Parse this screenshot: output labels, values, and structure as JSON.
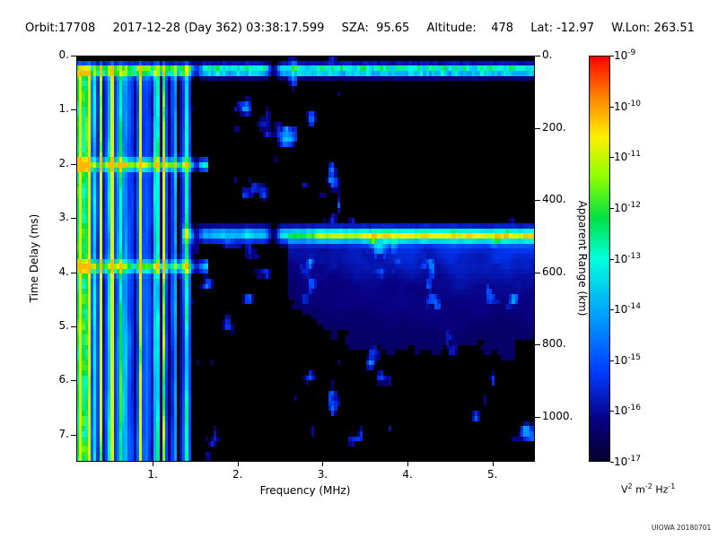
{
  "header": {
    "orbit": "Orbit:17708",
    "datetime": "2017-12-28 (Day 362) 03:38:17.599",
    "sza": "SZA:  95.65",
    "altitude": "Altitude:    478",
    "lat": "Lat: -12.97",
    "wlon": "W.Lon: 263.51"
  },
  "footer": {
    "credit": "UIOWA 20180701"
  },
  "chart_data": {
    "type": "heatmap",
    "title": "",
    "xlabel": "Frequency (MHz)",
    "ylabel_left": "Time Delay (ms)",
    "ylabel_right": "Apparent Range (km)",
    "x_range_mhz": [
      0.1,
      5.5
    ],
    "x_ticks_mhz": [
      1,
      2,
      3,
      4,
      5
    ],
    "y_range_ms": [
      0,
      7.5
    ],
    "y_ticks_ms": [
      0,
      1,
      2,
      3,
      4,
      5,
      6,
      7
    ],
    "right_axis_ticks_km": [
      0,
      200,
      400,
      600,
      800,
      1000
    ],
    "km_per_ms": 149.9,
    "grid": false,
    "background": "#000000",
    "colorbar": {
      "scale": "log10",
      "tick_exponents": [
        -9,
        -10,
        -11,
        -12,
        -13,
        -14,
        -15,
        -16,
        -17
      ],
      "units_text": "V² m⁻² Hz⁻¹",
      "units_parts": [
        {
          "base": "V",
          "exp": "2"
        },
        {
          "base": "m",
          "exp": "-2"
        },
        {
          "base": "Hz",
          "exp": "-1"
        }
      ],
      "top_color": "#ff0000",
      "bottom_color": "#000030"
    },
    "features": [
      {
        "name": "local-plasma-line",
        "desc": "bright green-cyan horizontal band near zero delay across all frequencies",
        "td_center": 0.27,
        "td_sigma": 0.07,
        "f_range": [
          0.1,
          5.5
        ],
        "peak": 0.55
      },
      {
        "name": "plasma-harmonic-stripes",
        "desc": "dense vertical cyan/green stripes at low frequency",
        "f_range": [
          0.1,
          1.45
        ],
        "td_range": [
          0.1,
          7.5
        ],
        "peak": 0.6
      },
      {
        "name": "low-freq-echo-2ms",
        "desc": "horizontal green echo line at low frequency",
        "td_center": 2.02,
        "td_sigma": 0.07,
        "f_range": [
          0.1,
          1.65
        ],
        "peak": 0.5
      },
      {
        "name": "low-freq-echo-4ms",
        "desc": "fainter horizontal echo line at low frequency",
        "td_center": 3.9,
        "td_sigma": 0.08,
        "f_range": [
          0.1,
          1.65
        ],
        "peak": 0.42
      },
      {
        "name": "ionosphere-echo-band",
        "desc": "strong green echo trace, brightens with frequency",
        "td_center": 3.3,
        "td_sigma": 0.09,
        "f_range": [
          1.35,
          5.5
        ],
        "ramp_f": [
          1.5,
          3.4
        ],
        "peak": 0.62
      },
      {
        "name": "echo-diffuse-tail",
        "desc": "diffuse cyan scatter below main echo",
        "f_range": [
          2.6,
          5.5
        ],
        "td_range": [
          3.35,
          6.0
        ],
        "peak": 0.2
      },
      {
        "name": "rfi-dark-column-1",
        "desc": "dark vertical gap",
        "f_center": 2.42,
        "f_sigma": 0.05,
        "suppression": 0.92
      },
      {
        "name": "rfi-dark-column-2",
        "desc": "dark vertical gap",
        "f_center": 1.52,
        "f_sigma": 0.04,
        "suppression": 0.7
      },
      {
        "name": "background-speckle",
        "desc": "scattered blue noise blobs over black background",
        "peak": 0.38
      }
    ]
  }
}
